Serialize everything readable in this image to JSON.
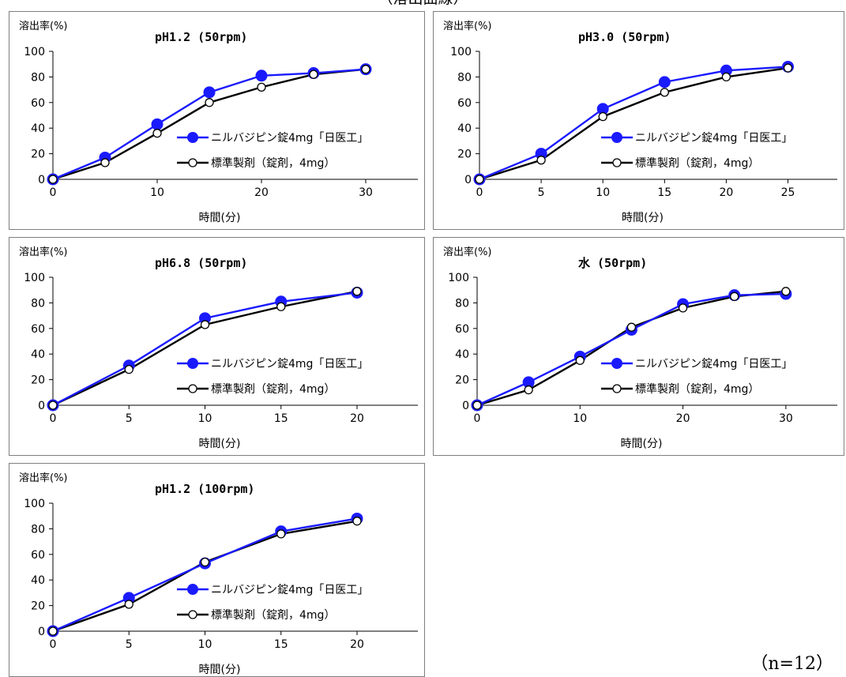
{
  "header": {
    "text": "（溶出曲線）"
  },
  "footnote": "（n=12）",
  "colors": {
    "test": "#1a1aff",
    "reference": "#000000",
    "axis": "#000000"
  },
  "chart_data": [
    {
      "type": "line",
      "title": "pH1.2 (50rpm)",
      "ylabel": "溶出率(%)",
      "xlabel": "時間(分)",
      "ylim": [
        0,
        100
      ],
      "yticks": [
        0,
        20,
        40,
        60,
        80,
        100
      ],
      "xlim": [
        0,
        35
      ],
      "xticks": [
        0,
        10,
        20,
        30
      ],
      "legend_position": "center-right",
      "series": [
        {
          "name": "ニルバジピン錠4mg「日医工」",
          "x": [
            0,
            5,
            10,
            15,
            20,
            25,
            30
          ],
          "values": [
            0,
            17,
            43,
            68,
            81,
            83,
            86
          ]
        },
        {
          "name": "標準製剤（錠剤，4mg）",
          "x": [
            0,
            5,
            10,
            15,
            20,
            25,
            30
          ],
          "values": [
            0,
            13,
            36,
            60,
            72,
            82,
            86
          ]
        }
      ]
    },
    {
      "type": "line",
      "title": "pH3.0 (50rpm)",
      "ylabel": "溶出率(%)",
      "xlabel": "時間(分)",
      "ylim": [
        0,
        100
      ],
      "yticks": [
        0,
        20,
        40,
        60,
        80,
        100
      ],
      "xlim": [
        0,
        29
      ],
      "xticks": [
        0,
        5,
        10,
        15,
        20,
        25
      ],
      "legend_position": "center-right",
      "series": [
        {
          "name": "ニルバジピン錠4mg「日医工」",
          "x": [
            0,
            5,
            10,
            15,
            20,
            25
          ],
          "values": [
            0,
            20,
            55,
            76,
            85,
            88
          ]
        },
        {
          "name": "標準製剤（錠剤，4mg）",
          "x": [
            0,
            5,
            10,
            15,
            20,
            25
          ],
          "values": [
            0,
            15,
            49,
            68,
            80,
            87
          ]
        }
      ]
    },
    {
      "type": "line",
      "title": "pH6.8 (50rpm)",
      "ylabel": "溶出率(%)",
      "xlabel": "時間(分)",
      "ylim": [
        0,
        100
      ],
      "yticks": [
        0,
        20,
        40,
        60,
        80,
        100
      ],
      "xlim": [
        0,
        24
      ],
      "xticks": [
        0,
        5,
        10,
        15,
        20
      ],
      "legend_position": "center-right",
      "series": [
        {
          "name": "ニルバジピン錠4mg「日医工」",
          "x": [
            0,
            5,
            10,
            15,
            20
          ],
          "values": [
            0,
            31,
            68,
            81,
            88
          ]
        },
        {
          "name": "標準製剤（錠剤，4mg）",
          "x": [
            0,
            5,
            10,
            15,
            20
          ],
          "values": [
            0,
            28,
            63,
            77,
            89
          ]
        }
      ]
    },
    {
      "type": "line",
      "title": "水 (50rpm)",
      "ylabel": "溶出率(%)",
      "xlabel": "時間(分)",
      "ylim": [
        0,
        100
      ],
      "yticks": [
        0,
        20,
        40,
        60,
        80,
        100
      ],
      "xlim": [
        0,
        35
      ],
      "xticks": [
        0,
        10,
        20,
        30
      ],
      "legend_position": "center-right",
      "series": [
        {
          "name": "ニルバジピン錠4mg「日医工」",
          "x": [
            0,
            5,
            10,
            15,
            20,
            25,
            30
          ],
          "values": [
            0,
            18,
            38,
            59,
            79,
            86,
            87
          ]
        },
        {
          "name": "標準製剤（錠剤，4mg）",
          "x": [
            0,
            5,
            10,
            15,
            20,
            25,
            30
          ],
          "values": [
            0,
            12,
            35,
            61,
            76,
            85,
            89
          ]
        }
      ]
    },
    {
      "type": "line",
      "title": "pH1.2 (100rpm)",
      "ylabel": "溶出率(%)",
      "xlabel": "時間(分)",
      "ylim": [
        0,
        100
      ],
      "yticks": [
        0,
        20,
        40,
        60,
        80,
        100
      ],
      "xlim": [
        0,
        24
      ],
      "xticks": [
        0,
        5,
        10,
        15,
        20
      ],
      "legend_position": "center-right",
      "series": [
        {
          "name": "ニルバジピン錠4mg「日医工」",
          "x": [
            0,
            5,
            10,
            15,
            20
          ],
          "values": [
            0,
            26,
            53,
            78,
            88
          ]
        },
        {
          "name": "標準製剤（錠剤，4mg）",
          "x": [
            0,
            5,
            10,
            15,
            20
          ],
          "values": [
            0,
            21,
            54,
            76,
            86
          ]
        }
      ]
    }
  ]
}
